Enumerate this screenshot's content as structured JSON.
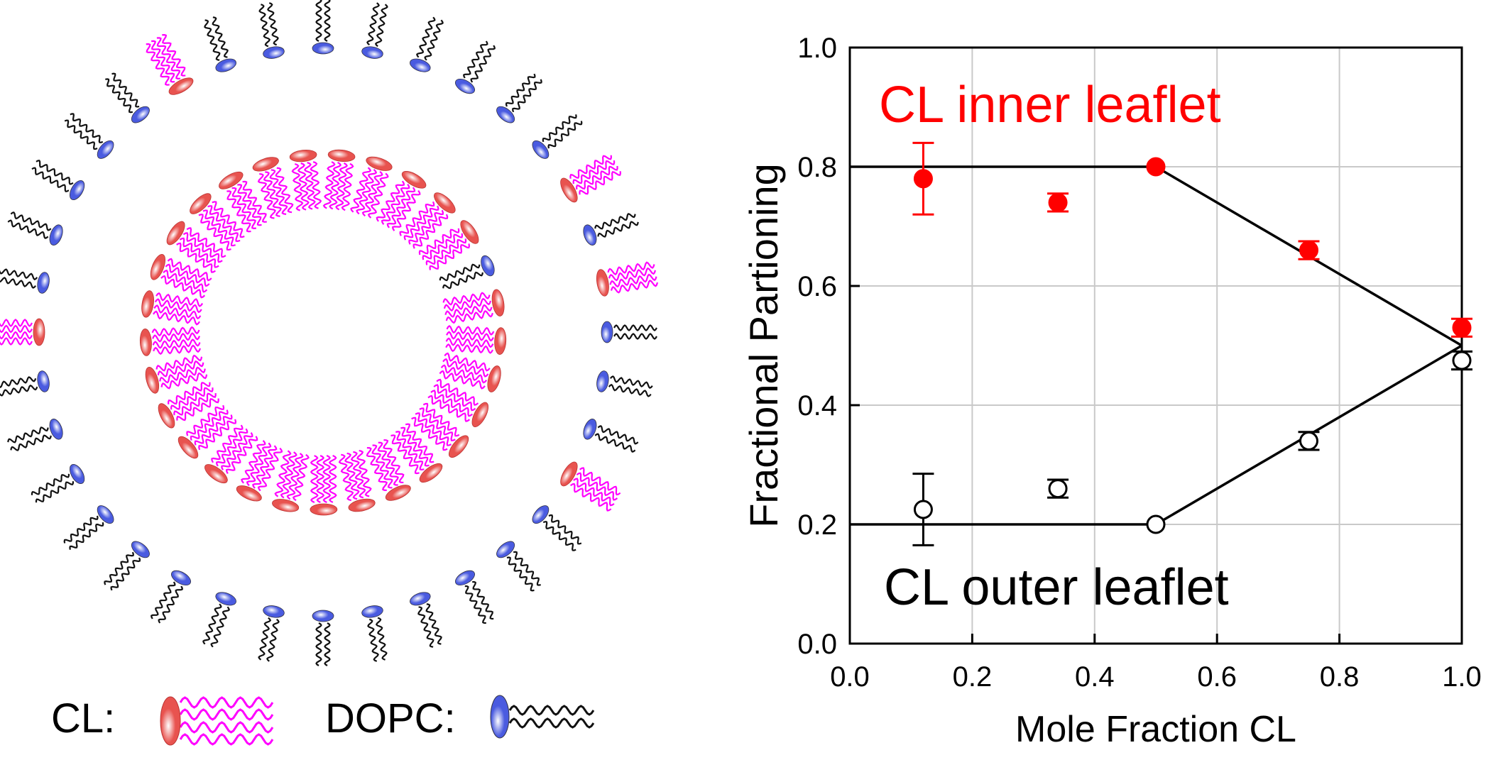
{
  "schematic": {
    "legend_cl_label": "CL:",
    "legend_dopc_label": "DOPC:",
    "colors": {
      "cl_tail": "#ff00ff",
      "cl_head": "#e8534f",
      "dopc_tail": "#111111",
      "dopc_head": "#4a5be0"
    },
    "outer_leaflet": [
      "DOPC",
      "DOPC",
      "DOPC",
      "DOPC",
      "DOPC",
      "DOPC",
      "CL",
      "DOPC",
      "CL",
      "DOPC",
      "DOPC",
      "DOPC",
      "CL",
      "DOPC",
      "DOPC",
      "DOPC",
      "DOPC",
      "DOPC",
      "DOPC",
      "DOPC",
      "DOPC",
      "DOPC",
      "DOPC",
      "DOPC",
      "DOPC",
      "DOPC",
      "DOPC",
      "CL",
      "DOPC",
      "DOPC",
      "DOPC",
      "DOPC",
      "DOPC",
      "CL",
      "DOPC",
      "DOPC"
    ],
    "inner_leaflet": [
      "CL",
      "CL",
      "CL",
      "CL",
      "CL",
      "DOPC",
      "CL",
      "CL",
      "CL",
      "CL",
      "CL",
      "CL",
      "CL",
      "CL",
      "CL",
      "CL",
      "CL",
      "CL",
      "CL",
      "CL",
      "CL",
      "CL",
      "CL",
      "CL",
      "CL",
      "CL",
      "CL",
      "CL",
      "CL"
    ]
  },
  "chart_data": {
    "type": "scatter",
    "xlabel": "Mole Fraction CL",
    "ylabel": "Fractional Partioning",
    "xlim": [
      0.0,
      1.0
    ],
    "ylim": [
      0.0,
      1.0
    ],
    "x_ticks": [
      "0.0",
      "0.2",
      "0.4",
      "0.6",
      "0.8",
      "1.0"
    ],
    "y_ticks": [
      "0.0",
      "0.2",
      "0.4",
      "0.6",
      "0.8",
      "1.0"
    ],
    "grid": true,
    "series": [
      {
        "name": "CL inner leaflet",
        "color": "#ff0000",
        "marker": "filled-circle",
        "points": [
          {
            "x": 0.12,
            "y": 0.78,
            "err": 0.06
          },
          {
            "x": 0.34,
            "y": 0.74,
            "err": 0.015
          },
          {
            "x": 0.5,
            "y": 0.8,
            "err": 0.0
          },
          {
            "x": 0.75,
            "y": 0.66,
            "err": 0.015
          },
          {
            "x": 1.0,
            "y": 0.53,
            "err": 0.015
          }
        ],
        "model_line": [
          [
            0.0,
            0.8
          ],
          [
            0.5,
            0.8
          ],
          [
            1.0,
            0.5
          ]
        ]
      },
      {
        "name": "CL outer leaflet",
        "color": "#000000",
        "marker": "open-circle",
        "points": [
          {
            "x": 0.12,
            "y": 0.225,
            "err": 0.06
          },
          {
            "x": 0.34,
            "y": 0.26,
            "err": 0.015
          },
          {
            "x": 0.5,
            "y": 0.2,
            "err": 0.0
          },
          {
            "x": 0.75,
            "y": 0.34,
            "err": 0.015
          },
          {
            "x": 1.0,
            "y": 0.475,
            "err": 0.015
          }
        ],
        "model_line": [
          [
            0.0,
            0.2
          ],
          [
            0.5,
            0.2
          ],
          [
            1.0,
            0.5
          ]
        ]
      }
    ],
    "annotations": [
      "CL inner leaflet",
      "CL outer leaflet"
    ]
  }
}
